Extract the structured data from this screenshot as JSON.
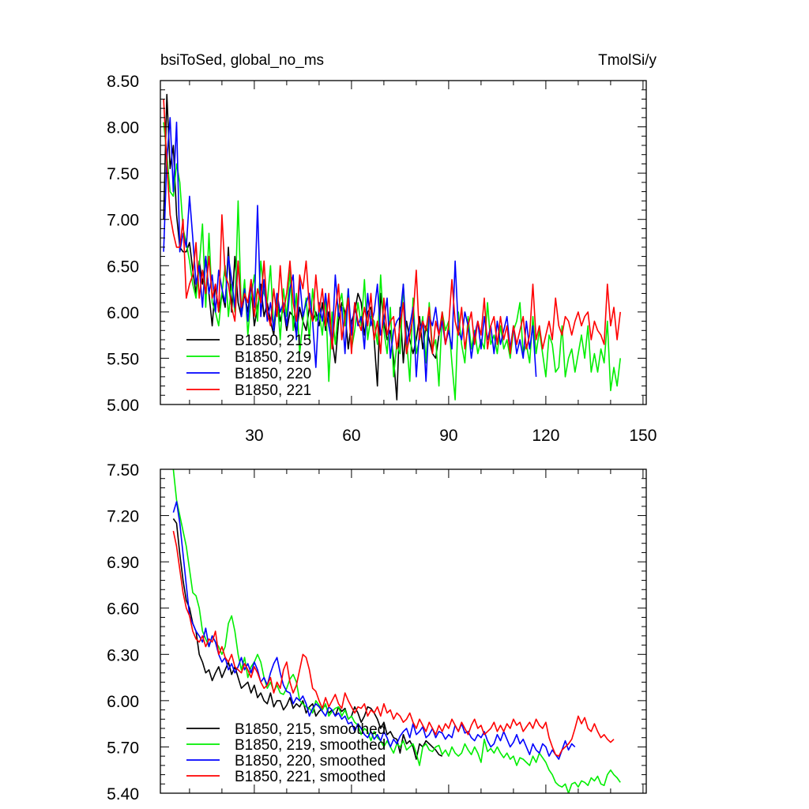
{
  "figure": {
    "header_left": "bsiToSed, global_no_ms",
    "header_right": "TmolSi/y"
  },
  "chart_data": [
    {
      "type": "line",
      "title": "bsiToSed, global_no_ms",
      "units": "TmolSi/y",
      "xlabel": "",
      "ylabel": "",
      "xlim": [
        1,
        151
      ],
      "ylim": [
        5.0,
        8.5
      ],
      "xticks": [
        30,
        60,
        90,
        120,
        150
      ],
      "xtick_labels": [
        "30",
        "60",
        "90",
        "120",
        "150"
      ],
      "yticks": [
        5.0,
        5.5,
        6.0,
        6.5,
        7.0,
        7.5,
        8.0,
        8.5
      ],
      "ytick_labels": [
        "5.00",
        "5.50",
        "6.00",
        "6.50",
        "7.00",
        "7.50",
        "8.00",
        "8.50"
      ],
      "legend_position": "bottom-left",
      "series": [
        {
          "name": "B1850, 215",
          "color": "#000000",
          "x_start": 2,
          "values": [
            7.0,
            8.35,
            7.55,
            7.8,
            7.05,
            6.7,
            6.65,
            6.65,
            6.75,
            6.45,
            6.2,
            6.55,
            6.3,
            6.6,
            6.2,
            5.85,
            6.3,
            6.0,
            6.2,
            6.05,
            6.7,
            6.0,
            6.6,
            6.1,
            5.95,
            6.2,
            6.0,
            6.3,
            5.85,
            6.05,
            6.3,
            5.95,
            6.1,
            5.9,
            5.75,
            6.15,
            5.9,
            6.05,
            5.8,
            6.0,
            5.95,
            5.75,
            6.05,
            5.9,
            5.8,
            6.05,
            5.9,
            6.0,
            5.85,
            6.1,
            5.8,
            6.0,
            5.7,
            5.45,
            5.9,
            6.1,
            6.0,
            5.6,
            5.9,
            6.0,
            6.2,
            6.1,
            5.75,
            6.0,
            6.05,
            5.7,
            5.2,
            6.2,
            5.9,
            5.7,
            5.8,
            5.5,
            5.05,
            6.05,
            5.45,
            5.9,
            5.7,
            5.55,
            5.7,
            5.95,
            5.6,
            5.85,
            5.7,
            5.55,
            5.5,
            5.75
          ]
        },
        {
          "name": "B1850, 219",
          "color": "#00ee00",
          "x_start": 2,
          "values": [
            8.05,
            7.7,
            7.3,
            7.25,
            7.6,
            7.4,
            6.9,
            6.75,
            6.55,
            6.3,
            6.15,
            6.5,
            6.95,
            6.05,
            6.85,
            6.1,
            6.0,
            5.85,
            6.2,
            6.5,
            5.95,
            6.3,
            6.0,
            7.2,
            6.0,
            6.35,
            5.75,
            6.15,
            6.4,
            5.9,
            6.55,
            6.2,
            6.1,
            6.5,
            5.8,
            6.2,
            5.7,
            6.25,
            5.95,
            6.45,
            5.8,
            6.2,
            5.55,
            5.9,
            6.15,
            5.7,
            6.25,
            5.9,
            6.0,
            5.75,
            6.15,
            5.25,
            6.0,
            5.65,
            6.05,
            6.2,
            5.85,
            6.25,
            5.6,
            5.8,
            6.1,
            5.85,
            6.35,
            5.7,
            5.95,
            5.9,
            5.65,
            6.4,
            5.8,
            5.55,
            6.05,
            5.3,
            5.65,
            5.55,
            6.3,
            5.7,
            5.25,
            6.15,
            5.55,
            5.7,
            5.95,
            5.45,
            6.1,
            5.6,
            5.7,
            5.2,
            6.0,
            5.8,
            5.9,
            5.45,
            5.05,
            6.0,
            5.65,
            5.45,
            5.95,
            5.6,
            5.8,
            5.55,
            5.7,
            5.6,
            6.1,
            5.65,
            5.75,
            5.55,
            5.85,
            5.6,
            5.7,
            5.5,
            5.8,
            5.9,
            6.1,
            5.55,
            5.65,
            5.45,
            5.95,
            5.55,
            5.8,
            5.55,
            5.3,
            5.75,
            5.65,
            5.35,
            5.4,
            5.85,
            5.3,
            5.5,
            5.6,
            5.35,
            5.55,
            5.75,
            5.5,
            5.85,
            5.35,
            5.55,
            5.35,
            5.6,
            5.45,
            5.9,
            5.15,
            5.4,
            5.2,
            5.5
          ]
        },
        {
          "name": "B1850, 220",
          "color": "#0000ff",
          "x_start": 2,
          "values": [
            6.65,
            7.65,
            8.1,
            7.3,
            8.05,
            6.65,
            6.85,
            6.7,
            7.25,
            6.8,
            6.3,
            6.5,
            6.05,
            6.6,
            6.2,
            6.4,
            6.0,
            6.45,
            6.25,
            6.1,
            6.6,
            6.35,
            6.05,
            6.55,
            5.95,
            6.25,
            5.9,
            6.35,
            6.05,
            7.15,
            5.95,
            6.35,
            5.9,
            6.1,
            5.8,
            6.2,
            6.0,
            6.1,
            5.85,
            6.25,
            6.4,
            5.7,
            6.35,
            5.95,
            6.1,
            6.2,
            5.9,
            5.4,
            6.1,
            5.9,
            6.2,
            5.85,
            5.65,
            6.4,
            5.95,
            6.05,
            5.55,
            6.25,
            5.75,
            6.1,
            5.85,
            5.95,
            5.6,
            6.2,
            5.85,
            6.0,
            6.3,
            5.75,
            5.9,
            6.15,
            5.5,
            5.8,
            5.9,
            5.95,
            6.3,
            5.65,
            5.85,
            6.05,
            5.3,
            5.8,
            5.9,
            5.25,
            5.95,
            5.85,
            6.05,
            5.75,
            5.9,
            5.65,
            5.8,
            5.6,
            6.55,
            5.8,
            5.7,
            6.0,
            5.85,
            5.5,
            5.75,
            5.9,
            5.6,
            5.95,
            5.7,
            5.85,
            5.55,
            5.9,
            5.65,
            5.8,
            5.95,
            5.6,
            5.85,
            5.55,
            5.7,
            5.5,
            5.9,
            5.6,
            5.85,
            5.3
          ]
        },
        {
          "name": "B1850, 221",
          "color": "#ff0000",
          "x_start": 2,
          "values": [
            8.3,
            7.6,
            7.05,
            6.85,
            6.7,
            6.7,
            7.0,
            6.15,
            6.3,
            6.4,
            6.75,
            6.15,
            6.45,
            6.2,
            6.6,
            6.15,
            6.3,
            6.0,
            7.05,
            6.4,
            6.3,
            6.05,
            5.9,
            6.55,
            6.05,
            6.2,
            6.1,
            6.35,
            5.95,
            6.25,
            6.1,
            6.55,
            6.0,
            5.85,
            6.25,
            5.95,
            6.5,
            6.0,
            6.2,
            6.55,
            6.1,
            5.9,
            6.4,
            6.25,
            6.55,
            6.05,
            5.9,
            6.4,
            6.0,
            6.25,
            5.85,
            6.2,
            5.6,
            6.0,
            6.3,
            5.7,
            5.95,
            6.15,
            5.55,
            6.1,
            5.9,
            5.8,
            6.05,
            5.85,
            6.2,
            5.7,
            5.9,
            5.55,
            6.15,
            5.75,
            5.9,
            5.95,
            5.6,
            5.85,
            6.1,
            5.55,
            5.75,
            5.95,
            6.45,
            5.7,
            5.9,
            5.8,
            6.05,
            5.55,
            5.9,
            5.75,
            6.0,
            5.65,
            5.85,
            6.35,
            5.9,
            5.75,
            6.05,
            5.6,
            5.85,
            6.0,
            5.65,
            5.9,
            5.75,
            6.15,
            5.6,
            5.85,
            5.95,
            5.65,
            5.95,
            5.7,
            5.85,
            5.55,
            5.85,
            5.65,
            5.8,
            5.95,
            5.6,
            5.75,
            6.3,
            5.7,
            5.85,
            5.6,
            5.75,
            5.9,
            5.7,
            6.15,
            5.85,
            5.75,
            5.95,
            5.9,
            5.75,
            5.9,
            6.0,
            5.85,
            5.95,
            6.0,
            5.7,
            5.9,
            5.8,
            5.75,
            5.65,
            6.3,
            5.85,
            6.05,
            5.7,
            6.0
          ]
        }
      ]
    },
    {
      "type": "line",
      "title": "",
      "xlabel": "",
      "ylabel": "",
      "xlim": [
        1,
        151
      ],
      "ylim": [
        5.4,
        7.5
      ],
      "yticks": [
        5.4,
        5.7,
        6.0,
        6.3,
        6.6,
        6.9,
        7.2,
        7.5
      ],
      "ytick_labels": [
        "5.40",
        "5.70",
        "6.00",
        "6.30",
        "6.60",
        "6.90",
        "7.20",
        "7.50"
      ],
      "legend_position": "bottom-left",
      "series": [
        {
          "name": "B1850, 215, smoothed",
          "color": "#000000",
          "x_start": 5,
          "values": [
            7.18,
            7.15,
            6.95,
            6.78,
            6.65,
            6.6,
            6.5,
            6.45,
            6.3,
            6.25,
            6.18,
            6.2,
            6.13,
            6.18,
            6.22,
            6.15,
            6.2,
            6.25,
            6.17,
            6.22,
            6.15,
            6.08,
            6.1,
            6.12,
            6.05,
            6.1,
            6.02,
            6.05,
            6.0,
            5.98,
            6.05,
            5.96,
            6.0,
            6.0,
            5.94,
            5.97,
            6.02,
            5.95,
            5.98,
            5.96,
            6.0,
            5.92,
            5.96,
            5.98,
            5.9,
            5.93,
            5.95,
            5.97,
            5.92,
            5.94,
            5.9,
            5.96,
            5.93,
            5.95,
            5.88,
            5.9,
            5.96,
            5.92,
            5.86,
            5.9,
            5.96,
            5.95,
            5.92,
            5.88,
            5.82,
            5.86,
            5.78,
            5.8,
            5.76,
            5.75,
            5.66,
            5.78,
            5.72,
            5.74,
            5.7,
            5.62,
            5.72,
            5.7,
            5.74,
            5.72,
            5.7,
            5.68,
            5.65,
            5.64
          ]
        },
        {
          "name": "B1850, 219, smoothed",
          "color": "#00ee00",
          "x_start": 5,
          "values": [
            7.5,
            7.3,
            7.2,
            7.1,
            7.0,
            6.85,
            6.7,
            6.68,
            6.6,
            6.45,
            6.4,
            6.35,
            6.42,
            6.38,
            6.35,
            6.3,
            6.35,
            6.5,
            6.55,
            6.45,
            6.3,
            6.2,
            6.28,
            6.15,
            6.22,
            6.25,
            6.3,
            6.25,
            6.15,
            6.08,
            6.12,
            6.06,
            6.1,
            6.05,
            6.04,
            6.08,
            6.14,
            6.17,
            6.12,
            6.0,
            5.98,
            5.96,
            5.95,
            5.92,
            6.0,
            5.97,
            5.94,
            5.98,
            5.9,
            5.93,
            5.95,
            5.96,
            5.9,
            5.94,
            5.88,
            5.9,
            5.86,
            5.84,
            5.78,
            5.82,
            5.8,
            5.74,
            5.8,
            5.76,
            5.74,
            5.7,
            5.74,
            5.7,
            5.66,
            5.72,
            5.7,
            5.74,
            5.68,
            5.7,
            5.72,
            5.66,
            5.58,
            5.7,
            5.72,
            5.68,
            5.67,
            5.7,
            5.71,
            5.65,
            5.68,
            5.64,
            5.7,
            5.66,
            5.64,
            5.66,
            5.72,
            5.68,
            5.65,
            5.7,
            5.66,
            5.6,
            5.75,
            5.67,
            5.69,
            5.66,
            5.7,
            5.66,
            5.63,
            5.66,
            5.62,
            5.64,
            5.58,
            5.63,
            5.62,
            5.6,
            5.58,
            5.64,
            5.6,
            5.66,
            5.63,
            5.6,
            5.55,
            5.52,
            5.47,
            5.45,
            5.44,
            5.46,
            5.4,
            5.46,
            5.47,
            5.44,
            5.48,
            5.47,
            5.45,
            5.5,
            5.48,
            5.51,
            5.46,
            5.45,
            5.52,
            5.55,
            5.52,
            5.5,
            5.47
          ]
        },
        {
          "name": "B1850, 220, smoothed",
          "color": "#0000ff",
          "x_start": 5,
          "values": [
            7.22,
            7.29,
            7.15,
            6.95,
            6.75,
            6.55,
            6.5,
            6.45,
            6.42,
            6.38,
            6.47,
            6.35,
            6.42,
            6.38,
            6.3,
            6.25,
            6.28,
            6.2,
            6.24,
            6.18,
            6.22,
            6.28,
            6.2,
            6.24,
            6.18,
            6.25,
            6.2,
            6.12,
            6.15,
            6.1,
            6.18,
            6.24,
            6.28,
            6.18,
            6.1,
            6.06,
            6.05,
            5.98,
            6.02,
            6.0,
            6.03,
            5.98,
            5.9,
            5.95,
            5.98,
            5.96,
            5.93,
            5.9,
            5.96,
            5.94,
            5.9,
            5.92,
            5.88,
            5.9,
            5.85,
            5.86,
            5.8,
            5.85,
            5.82,
            5.78,
            5.76,
            5.8,
            5.75,
            5.78,
            5.74,
            5.8,
            5.76,
            5.7,
            5.75,
            5.72,
            5.77,
            5.8,
            5.82,
            5.76,
            5.85,
            5.78,
            5.8,
            5.83,
            5.76,
            5.78,
            5.82,
            5.76,
            5.8,
            5.79,
            5.75,
            5.78,
            5.76,
            5.84,
            5.8,
            5.85,
            5.79,
            5.8,
            5.76,
            5.74,
            5.78,
            5.76,
            5.8,
            5.74,
            5.7,
            5.72,
            5.78,
            5.74,
            5.8,
            5.75,
            5.7,
            5.73,
            5.78,
            5.72,
            5.75,
            5.7,
            5.65,
            5.72,
            5.68,
            5.66,
            5.72,
            5.7,
            5.64,
            5.68,
            5.65,
            5.62,
            5.68,
            5.74,
            5.68,
            5.72,
            5.7
          ]
        },
        {
          "name": "B1850, 221, smoothed",
          "color": "#ff0000",
          "x_start": 5,
          "values": [
            7.1,
            7.0,
            6.85,
            6.7,
            6.6,
            6.55,
            6.45,
            6.4,
            6.38,
            6.42,
            6.35,
            6.4,
            6.38,
            6.45,
            6.3,
            6.35,
            6.28,
            6.25,
            6.3,
            6.22,
            6.2,
            6.18,
            6.24,
            6.2,
            6.15,
            6.22,
            6.18,
            6.12,
            6.08,
            6.1,
            6.15,
            6.05,
            6.12,
            6.08,
            6.2,
            6.25,
            6.12,
            6.05,
            6.1,
            6.2,
            6.3,
            6.28,
            6.2,
            6.08,
            6.06,
            6.0,
            5.95,
            6.02,
            5.96,
            6.0,
            6.04,
            5.98,
            5.95,
            6.05,
            6.0,
            5.96,
            5.92,
            5.96,
            5.95,
            5.98,
            5.9,
            5.94,
            5.92,
            5.96,
            5.9,
            5.98,
            5.92,
            5.94,
            5.88,
            5.92,
            5.9,
            5.86,
            5.88,
            5.92,
            5.86,
            5.82,
            5.88,
            5.84,
            5.8,
            5.86,
            5.82,
            5.78,
            5.84,
            5.8,
            5.85,
            5.82,
            5.88,
            5.84,
            5.8,
            5.86,
            5.82,
            5.78,
            5.84,
            5.88,
            5.82,
            5.84,
            5.78,
            5.8,
            5.82,
            5.86,
            5.8,
            5.84,
            5.8,
            5.85,
            5.82,
            5.88,
            5.84,
            5.86,
            5.8,
            5.83,
            5.86,
            5.82,
            5.88,
            5.84,
            5.82,
            5.86,
            5.76,
            5.7,
            5.65,
            5.64,
            5.68,
            5.7,
            5.72,
            5.75,
            5.82,
            5.9,
            5.85,
            5.89,
            5.82,
            5.8,
            5.85,
            5.8,
            5.76,
            5.78,
            5.75,
            5.73,
            5.75
          ]
        }
      ]
    }
  ]
}
